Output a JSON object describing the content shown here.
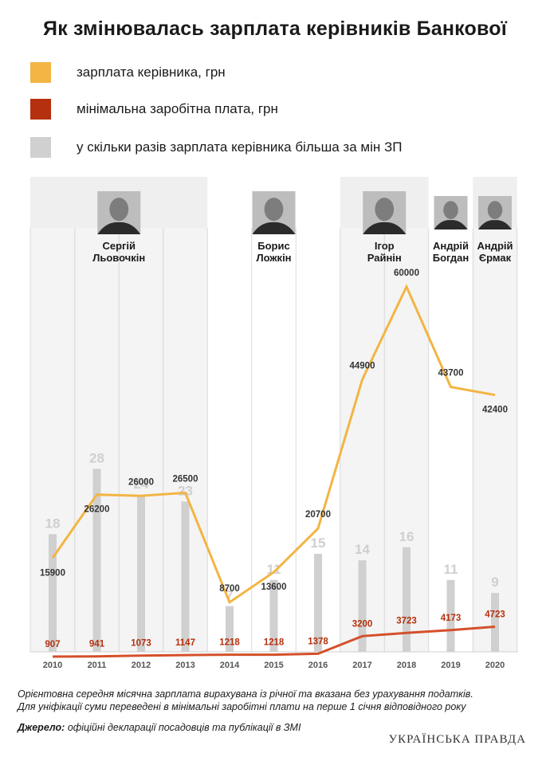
{
  "title": "Як змінювалась зарплата керівників Банкової",
  "legend": [
    {
      "label": "зарплата керівника, грн",
      "color": "#f2b544"
    },
    {
      "label": "мінімальна заробітна плата, грн",
      "color": "#b5300e"
    },
    {
      "label": "у скільки разів зарплата керівника більша за мін ЗП",
      "color": "#d0d0d0"
    }
  ],
  "heads": [
    {
      "line1": "Сергій",
      "line2": "Льовочкін",
      "from": "2010",
      "to": "2013"
    },
    {
      "line1": "Борис",
      "line2": "Ложкін",
      "from": "2014",
      "to": "2016"
    },
    {
      "line1": "Ігор",
      "line2": "Райнін",
      "from": "2017",
      "to": "2018"
    },
    {
      "line1": "Андрій",
      "line2": "Богдан",
      "from": "2019",
      "to": "2019"
    },
    {
      "line1": "Андрій",
      "line2": "Єрмак",
      "from": "2020",
      "to": "2020"
    }
  ],
  "chart_data": {
    "type": "line",
    "categories": [
      "2010",
      "2011",
      "2012",
      "2013",
      "2014",
      "2015",
      "2016",
      "2017",
      "2018",
      "2019",
      "2020"
    ],
    "series": [
      {
        "name": "зарплата керівника, грн",
        "color": "#f2b544",
        "values": [
          15900,
          26200,
          26000,
          26500,
          8700,
          13600,
          20700,
          44900,
          60000,
          43700,
          42400
        ]
      },
      {
        "name": "мінімальна заробітна плата, грн",
        "color": "#b5300e",
        "values": [
          907,
          941,
          1073,
          1147,
          1218,
          1218,
          1378,
          3200,
          3723,
          4173,
          4723
        ]
      },
      {
        "name": "у скільки разів зарплата керівника більша за мін ЗП",
        "color": "#d0d0d0",
        "type": "bar",
        "values": [
          18,
          28,
          24,
          23,
          7,
          11,
          15,
          14,
          16,
          11,
          9
        ]
      }
    ],
    "title": "Як змінювалась зарплата керівників Банкової",
    "xlabel": "",
    "ylabel": ""
  },
  "notes": {
    "line1": "Орієнтовна середня місячна зарплата вирахувана із річної та вказана без урахування податків.",
    "line2": "Для уніфікації суми переведені в мінімальні заробітні плати на перше 1 січня відповідного року",
    "source_label": "Джерело:",
    "source_text": " офіційні декларації посадовців та публікації в ЗМІ"
  },
  "brand": "УКРАЇНСЬКА ПРАВДА"
}
